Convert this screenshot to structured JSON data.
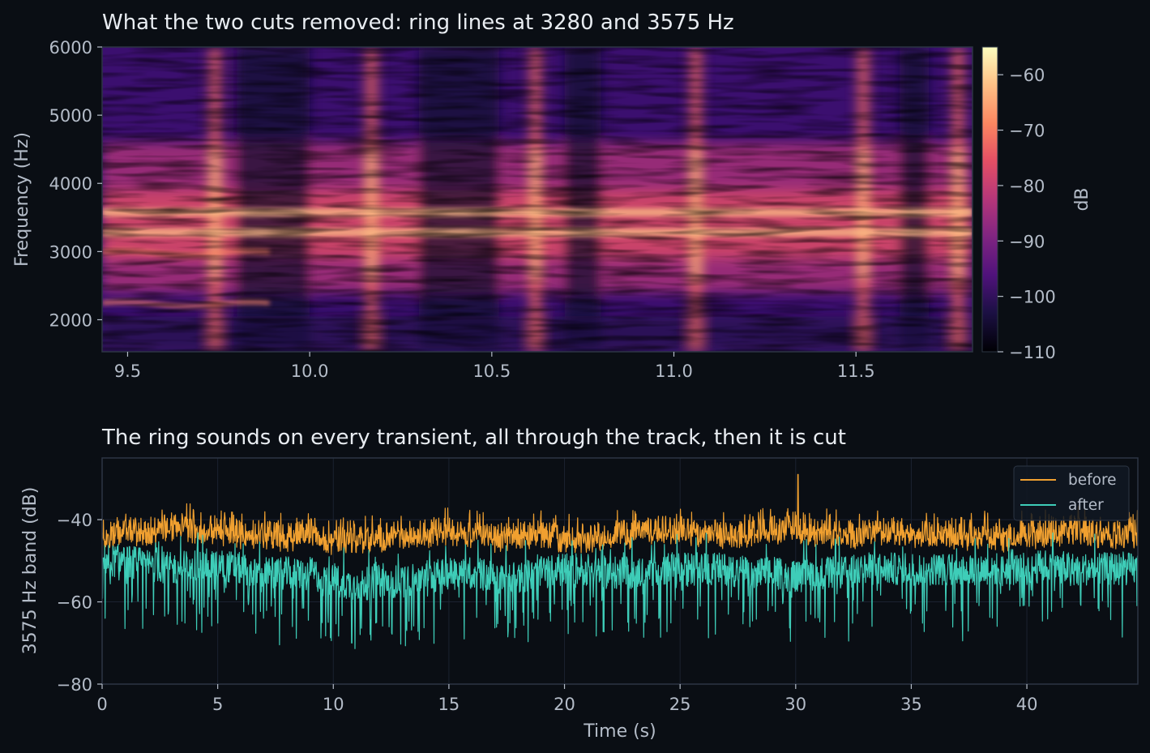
{
  "colors": {
    "background": "#0a0e14",
    "before": "#f0a030",
    "after": "#3ecdb8",
    "text": "#e8ecf1",
    "muted": "#b4bcc8",
    "colormap": "magma"
  },
  "chart_data": [
    {
      "type": "heatmap",
      "title": "What the two cuts removed: ring lines at 3280 and 3575 Hz",
      "xlabel": "",
      "ylabel": "Frequency (Hz)",
      "xlim": [
        9.43,
        11.82
      ],
      "ylim": [
        1530,
        6000
      ],
      "xticks": [
        9.5,
        10.0,
        10.5,
        11.0,
        11.5
      ],
      "xtick_labels": [
        "9.5",
        "10.0",
        "10.5",
        "11.0",
        "11.5"
      ],
      "yticks": [
        2000,
        3000,
        4000,
        5000,
        6000
      ],
      "ytick_labels": [
        "2000",
        "3000",
        "4000",
        "5000",
        "6000"
      ],
      "colorbar": {
        "label": "dB",
        "range": [
          -110,
          -55
        ],
        "ticks": [
          -60,
          -70,
          -80,
          -90,
          -100,
          -110
        ],
        "tick_labels": [
          "−60",
          "−70",
          "−80",
          "−90",
          "−100",
          "−110"
        ]
      },
      "ring_lines_hz": [
        3280,
        3575
      ],
      "transients_s": [
        9.74,
        10.17,
        10.62,
        11.06,
        11.52,
        11.78
      ],
      "quiet_gaps_s": [
        [
          9.8,
          10.0
        ],
        [
          10.3,
          10.52
        ],
        [
          10.7,
          10.8
        ],
        [
          11.62,
          11.7
        ]
      ]
    },
    {
      "type": "line",
      "title": "The ring sounds on every transient, all through the track, then it is cut",
      "xlabel": "Time (s)",
      "ylabel": "3575 Hz band (dB)",
      "xlim": [
        0,
        44.8
      ],
      "ylim": [
        -80,
        -25
      ],
      "xticks": [
        0,
        5,
        10,
        15,
        20,
        25,
        30,
        35,
        40
      ],
      "xtick_labels": [
        "0",
        "5",
        "10",
        "15",
        "20",
        "25",
        "30",
        "35",
        "40"
      ],
      "yticks": [
        -80,
        -60,
        -40
      ],
      "ytick_labels": [
        "−80",
        "−60",
        "−40"
      ],
      "grid": true,
      "legend_position": "top-right",
      "series": [
        {
          "name": "before",
          "x": [
            0,
            1,
            2,
            3,
            4,
            5,
            6,
            7,
            8,
            9,
            10,
            11,
            12,
            13,
            14,
            15,
            16,
            17,
            18,
            19,
            20,
            21,
            22,
            23,
            24,
            25,
            26,
            27,
            28,
            29,
            30,
            31,
            32,
            33,
            34,
            35,
            36,
            37,
            38,
            39,
            40,
            41,
            42,
            43,
            44.8
          ],
          "y": [
            -43,
            -41,
            -42,
            -40,
            -41,
            -41,
            -42,
            -42,
            -43,
            -41,
            -44,
            -43,
            -43,
            -42,
            -42,
            -41,
            -42,
            -43,
            -42,
            -42,
            -43,
            -43,
            -42,
            -42,
            -41,
            -41,
            -42,
            -42,
            -42,
            -41,
            -41,
            -42,
            -42,
            -42,
            -41,
            -42,
            -42,
            -43,
            -42,
            -43,
            -42,
            -42,
            -41,
            -42,
            -42
          ],
          "peak": {
            "x": 30.1,
            "y": -29
          }
        },
        {
          "name": "after",
          "x": [
            0,
            1,
            2,
            3,
            4,
            5,
            6,
            7,
            8,
            9,
            10,
            11,
            12,
            13,
            14,
            15,
            16,
            17,
            18,
            19,
            20,
            21,
            22,
            23,
            24,
            25,
            26,
            27,
            28,
            29,
            30,
            31,
            32,
            33,
            34,
            35,
            36,
            37,
            38,
            39,
            40,
            41,
            42,
            43,
            44.8
          ],
          "y": [
            -50,
            -50,
            -51,
            -52,
            -51,
            -51,
            -52,
            -53,
            -53,
            -53,
            -55,
            -56,
            -55,
            -55,
            -54,
            -53,
            -53,
            -54,
            -54,
            -53,
            -52,
            -52,
            -53,
            -53,
            -52,
            -52,
            -52,
            -52,
            -53,
            -53,
            -54,
            -53,
            -53,
            -52,
            -52,
            -52,
            -52,
            -52,
            -52,
            -52,
            -52,
            -51,
            -52,
            -52,
            -52
          ],
          "min": {
            "x": 10.8,
            "y": -70
          }
        }
      ]
    }
  ]
}
